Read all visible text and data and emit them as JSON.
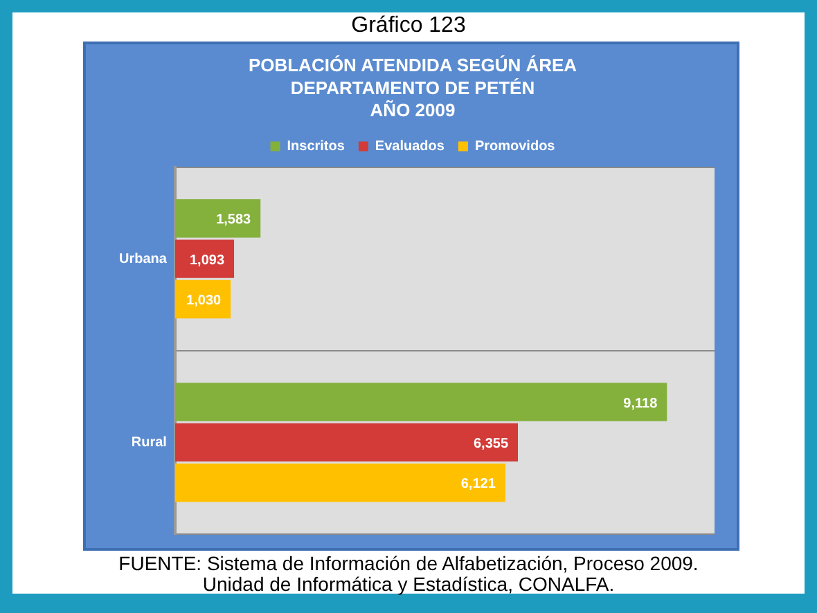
{
  "chart_data": {
    "type": "bar",
    "orientation": "horizontal",
    "title": "Gráfico 123",
    "subtitle": "POBLACIÓN ATENDIDA SEGÚN ÁREA\nDEPARTAMENTO DE PETÉN\nAÑO 2009",
    "categories": [
      "Urbana",
      "Rural"
    ],
    "series": [
      {
        "name": "Inscritos",
        "color": "#84b03c",
        "values": [
          1583,
          9118
        ],
        "value_labels": [
          "1,583",
          "9,118"
        ]
      },
      {
        "name": "Evaluados",
        "color": "#d23b38",
        "values": [
          1093,
          6355
        ],
        "value_labels": [
          "1,093",
          "6,355"
        ]
      },
      {
        "name": "Promovidos",
        "color": "#ffc000",
        "values": [
          1030,
          6121
        ],
        "value_labels": [
          "1,030",
          "6,121"
        ]
      }
    ],
    "legend": "top",
    "grid": "y",
    "tick_labels": "y",
    "annotations": [
      "FUENTE: Sistema de Información de Alfabetización, Proceso 2009.",
      "Unidad de Informática y Estadística, CONALFA."
    ]
  }
}
